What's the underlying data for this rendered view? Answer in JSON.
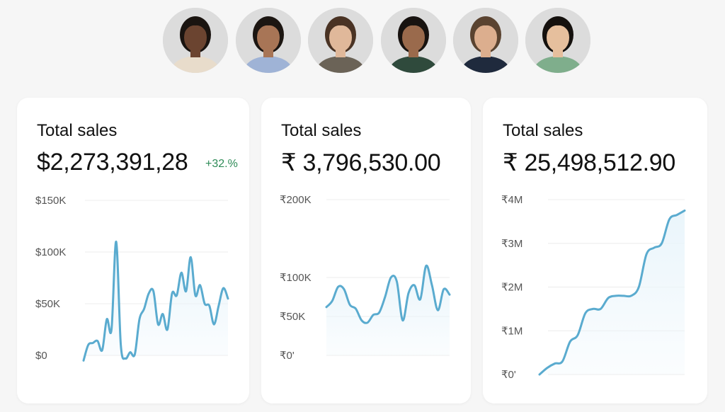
{
  "avatars": [
    {
      "name": "avatar-1",
      "skin": "#6b4430",
      "hair": "#1a1410",
      "shirt": "#e8dccb"
    },
    {
      "name": "avatar-2",
      "skin": "#a87556",
      "hair": "#1c1612",
      "shirt": "#9fb3d6"
    },
    {
      "name": "avatar-3",
      "skin": "#e0b89a",
      "hair": "#4a3324",
      "shirt": "#6b6357"
    },
    {
      "name": "avatar-4",
      "skin": "#9a6a4c",
      "hair": "#181310",
      "shirt": "#2f4a3c"
    },
    {
      "name": "avatar-5",
      "skin": "#dcae8e",
      "hair": "#5a4330",
      "shirt": "#1f2a3d"
    },
    {
      "name": "avatar-6",
      "skin": "#e6bf9d",
      "hair": "#15110e",
      "shirt": "#7fae8c"
    }
  ],
  "colors": {
    "line": "#5aabcf",
    "fill": "#eaf5fb",
    "grid": "#ececec",
    "positive": "#2e8b57"
  },
  "cards": [
    {
      "title": "Total sales",
      "value": "$2,273,391,28",
      "delta": "+32.%"
    },
    {
      "title": "Total sales",
      "value": "₹ 3,796,530.00"
    },
    {
      "title": "Total sales",
      "value": "₹ 25,498,512.90"
    }
  ],
  "chart_data": [
    {
      "type": "line",
      "title": "",
      "ylim": [
        0,
        150000
      ],
      "grid": true,
      "yticks": [
        {
          "v": 150000,
          "label": "$150K"
        },
        {
          "v": 100000,
          "label": "$100K"
        },
        {
          "v": 50000,
          "label": "$50K"
        },
        {
          "v": 0,
          "label": "$0"
        }
      ],
      "values": [
        -5000,
        10000,
        12000,
        14000,
        5000,
        35000,
        25000,
        110000,
        10000,
        -3000,
        3000,
        1000,
        35000,
        45000,
        60000,
        62000,
        30000,
        40000,
        25000,
        60000,
        58000,
        80000,
        62000,
        95000,
        58000,
        68000,
        50000,
        48000,
        30000,
        48000,
        65000,
        55000
      ],
      "area": false
    },
    {
      "type": "area",
      "title": "",
      "ylim": [
        0,
        200000
      ],
      "grid": true,
      "yticks": [
        {
          "v": 200000,
          "label": "₹200K"
        },
        {
          "v": 100000,
          "label": "₹100K"
        },
        {
          "v": 50000,
          "label": "₹50K"
        },
        {
          "v": 0,
          "label": "₹0'"
        }
      ],
      "values": [
        62000,
        70000,
        88000,
        85000,
        65000,
        60000,
        45000,
        42000,
        52000,
        55000,
        75000,
        100000,
        95000,
        45000,
        80000,
        90000,
        72000,
        115000,
        90000,
        58000,
        85000,
        78000
      ],
      "area": true
    },
    {
      "type": "area",
      "title": "",
      "ylim": [
        0,
        4000000
      ],
      "grid": true,
      "yticks": [
        {
          "v": 4000000,
          "label": "₹4M"
        },
        {
          "v": 3000000,
          "label": "₹3M"
        },
        {
          "v": 2000000,
          "label": "₹2M"
        },
        {
          "v": 1000000,
          "label": "₹1M"
        },
        {
          "v": 0,
          "label": "₹0'"
        }
      ],
      "values": [
        0,
        150000,
        250000,
        300000,
        750000,
        900000,
        1400000,
        1500000,
        1500000,
        1750000,
        1800000,
        1800000,
        1800000,
        2000000,
        2750000,
        2900000,
        3000000,
        3550000,
        3650000,
        3750000
      ],
      "area": true
    }
  ]
}
